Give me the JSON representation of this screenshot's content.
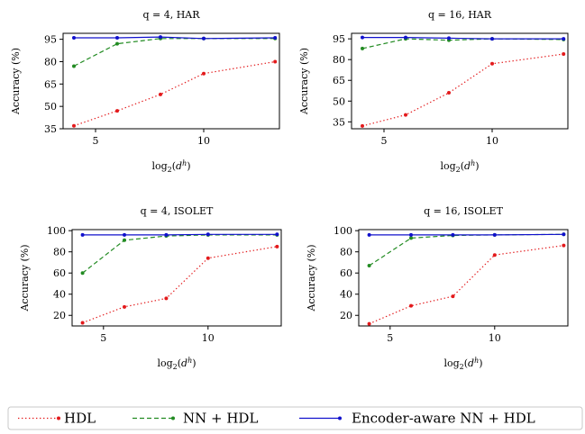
{
  "colors": {
    "HDL": "#e31a1c",
    "NN + HDL": "#228b22",
    "Encoder-aware NN + HDL": "#1010cc"
  },
  "legend": {
    "items": [
      {
        "name": "HDL",
        "style": "dotted"
      },
      {
        "name": "NN + HDL",
        "style": "dashed"
      },
      {
        "name": "Encoder-aware NN + HDL",
        "style": "solid"
      }
    ],
    "placement": "bottom"
  },
  "chart_data": [
    {
      "type": "line",
      "title": "q = 4, HAR",
      "xlabel": "log2(d^h)",
      "ylabel": "Accuracy (%)",
      "xlim": [
        3.5,
        13.5
      ],
      "ylim": [
        35,
        99
      ],
      "xticks": [
        5,
        10
      ],
      "yticks": [
        35,
        50,
        65,
        80,
        95
      ],
      "grid": false,
      "x": [
        4,
        6,
        8,
        10,
        13.3
      ],
      "series": [
        {
          "name": "HDL",
          "values": [
            37,
            47,
            58,
            72,
            80
          ]
        },
        {
          "name": "NN + HDL",
          "values": [
            77,
            92,
            95.5,
            95.5,
            95.5
          ]
        },
        {
          "name": "Encoder-aware NN + HDL",
          "values": [
            96,
            96,
            96.5,
            95.5,
            96
          ]
        }
      ]
    },
    {
      "type": "line",
      "title": "q = 16, HAR",
      "xlabel": "log2(d^h)",
      "ylabel": "Accuracy (%)",
      "xlim": [
        3.5,
        13.5
      ],
      "ylim": [
        30,
        99
      ],
      "xticks": [
        5,
        10
      ],
      "yticks": [
        35,
        50,
        65,
        80,
        95
      ],
      "grid": false,
      "x": [
        4,
        6,
        8,
        10,
        13.3
      ],
      "series": [
        {
          "name": "HDL",
          "values": [
            32,
            40,
            56,
            77,
            84
          ]
        },
        {
          "name": "NN + HDL",
          "values": [
            88,
            95,
            94,
            95,
            94.5
          ]
        },
        {
          "name": "Encoder-aware NN + HDL",
          "values": [
            96,
            96,
            95.5,
            95,
            95
          ]
        }
      ]
    },
    {
      "type": "line",
      "title": "q = 4, ISOLET",
      "xlabel": "log2(d^h)",
      "ylabel": "Accuracy (%)",
      "xlim": [
        3.5,
        13.5
      ],
      "ylim": [
        10,
        101
      ],
      "xticks": [
        5,
        10
      ],
      "yticks": [
        20,
        40,
        60,
        80,
        100
      ],
      "grid": false,
      "x": [
        4,
        6,
        8,
        10,
        13.3
      ],
      "series": [
        {
          "name": "HDL",
          "values": [
            13,
            28,
            36,
            74,
            85
          ]
        },
        {
          "name": "NN + HDL",
          "values": [
            60,
            91,
            95,
            96,
            96
          ]
        },
        {
          "name": "Encoder-aware NN + HDL",
          "values": [
            96,
            96,
            96,
            96.5,
            96.5
          ]
        }
      ]
    },
    {
      "type": "line",
      "title": "q = 16, ISOLET",
      "xlabel": "log2(d^h)",
      "ylabel": "Accuracy (%)",
      "xlim": [
        3.5,
        13.5
      ],
      "ylim": [
        10,
        101
      ],
      "xticks": [
        5,
        10
      ],
      "yticks": [
        20,
        40,
        60,
        80,
        100
      ],
      "grid": false,
      "x": [
        4,
        6,
        8,
        10,
        13.3
      ],
      "series": [
        {
          "name": "HDL",
          "values": [
            12,
            29,
            38,
            77,
            86
          ]
        },
        {
          "name": "NN + HDL",
          "values": [
            67,
            93,
            95.5,
            96,
            96.5
          ]
        },
        {
          "name": "Encoder-aware NN + HDL",
          "values": [
            96,
            96,
            96,
            96,
            96.5
          ]
        }
      ]
    }
  ]
}
